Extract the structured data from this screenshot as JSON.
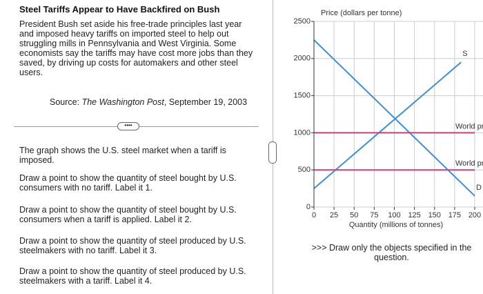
{
  "article": {
    "title": "Steel Tariffs Appear to Have Backfired on Bush",
    "body": "President Bush set aside his free-trade principles last year and imposed heavy tariffs on imported steel to help out struggling mills in Pennsylvania and West Virginia. Some economists say the tariffs may have cost more jobs than they saved, by driving up costs for automakers and other steel users.",
    "source_label": "Source:",
    "source_name": "The Washington Post",
    "source_date": ", September 19, 2003"
  },
  "instructions": [
    "The graph shows the U.S. steel market when a tariff is imposed.",
    "Draw a point to show the quantity of steel bought by U.S. consumers with no tariff. Label it 1.",
    "Draw a point to show the quantity of steel bought by U.S. consumers when a tariff is applied. Label it 2.",
    "Draw a point to show the quantity of steel produced by U.S. steelmakers with no tariff. Label it 3.",
    "Draw a point to show the quantity of steel produced by U.S. steelmakers with a tariff. Label it 4."
  ],
  "note": ">>> Draw only the objects specified in the question.",
  "chart_data": {
    "type": "line",
    "y_label": "Price (dollars per tonne)",
    "x_label": "Quantity (millions of tonnes)",
    "xlim": [
      0,
      200
    ],
    "xticks": [
      0,
      25,
      50,
      75,
      100,
      125,
      150,
      175,
      200
    ],
    "ylim": [
      0,
      2500
    ],
    "yticks": [
      0,
      500,
      1000,
      1500,
      2000,
      2500
    ],
    "grid": true,
    "series": [
      {
        "name": "S",
        "color": "#3d8fd8",
        "x": [
          0,
          183
        ],
        "values": [
          250,
          1950
        ]
      },
      {
        "name": "D",
        "color": "#3d8fd8",
        "x": [
          0,
          200
        ],
        "values": [
          2250,
          150
        ]
      },
      {
        "name": "World price + tariff",
        "color": "#cf3f78",
        "x": [
          0,
          200
        ],
        "values": [
          1000,
          1000
        ]
      },
      {
        "name": "World price",
        "color": "#cf3f78",
        "x": [
          0,
          200
        ],
        "values": [
          500,
          500
        ]
      }
    ]
  }
}
